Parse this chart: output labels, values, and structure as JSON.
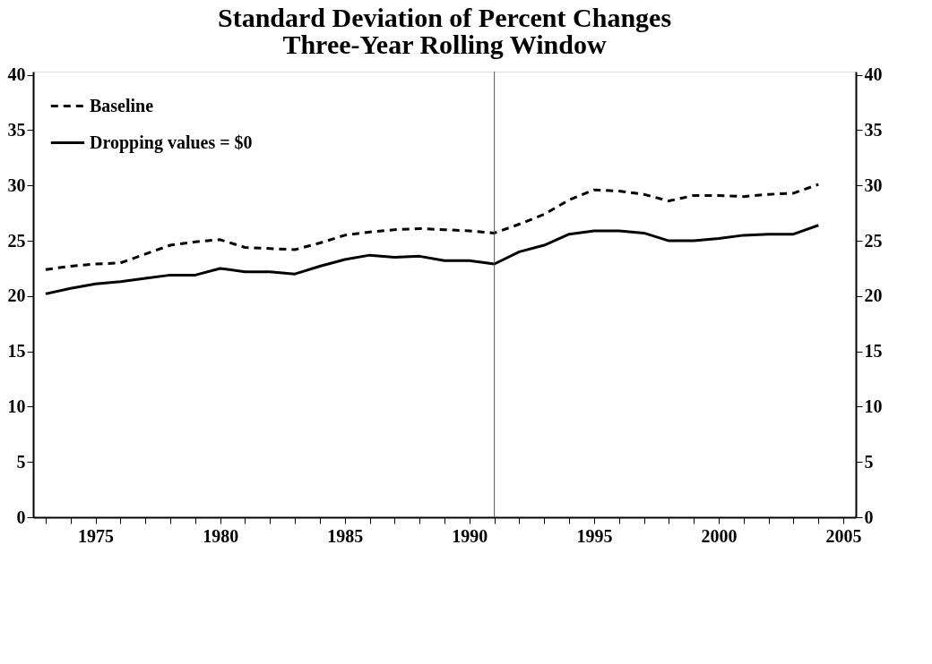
{
  "chart_data": {
    "type": "line",
    "title": "Standard Deviation of Percent Changes",
    "subtitle": "Three-Year Rolling Window",
    "x": [
      1973,
      1974,
      1975,
      1976,
      1977,
      1978,
      1979,
      1980,
      1981,
      1982,
      1983,
      1984,
      1985,
      1986,
      1987,
      1988,
      1989,
      1990,
      1991,
      1992,
      1993,
      1994,
      1995,
      1996,
      1997,
      1998,
      1999,
      2000,
      2001,
      2002,
      2003,
      2004
    ],
    "series": [
      {
        "name": "Baseline",
        "color": "#000000",
        "line_style": "dashed",
        "values": [
          22.4,
          22.7,
          22.9,
          23.0,
          23.8,
          24.6,
          24.9,
          25.1,
          24.4,
          24.3,
          24.2,
          24.8,
          25.5,
          25.8,
          26.0,
          26.1,
          26.0,
          25.9,
          25.7,
          26.5,
          27.4,
          28.7,
          29.6,
          29.5,
          29.2,
          28.6,
          29.1,
          29.1,
          29.0,
          29.2,
          29.3,
          30.1
        ]
      },
      {
        "name": "Dropping values = $0",
        "color": "#000000",
        "line_style": "solid",
        "values": [
          20.2,
          20.7,
          21.1,
          21.3,
          21.6,
          21.9,
          21.9,
          22.5,
          22.2,
          22.2,
          22.0,
          22.7,
          23.3,
          23.7,
          23.5,
          23.6,
          23.2,
          23.2,
          22.9,
          24.0,
          24.6,
          25.6,
          25.9,
          25.9,
          25.7,
          25.0,
          25.0,
          25.2,
          25.5,
          25.6,
          25.6,
          26.4
        ]
      }
    ],
    "xlim": [
      1972.5,
      2005.5
    ],
    "xticks": [
      {
        "value": 1973,
        "label": null
      },
      {
        "value": 1974,
        "label": null
      },
      1975,
      {
        "value": 1976,
        "label": null
      },
      {
        "value": 1977,
        "label": null
      },
      {
        "value": 1978,
        "label": null
      },
      {
        "value": 1979,
        "label": null
      },
      1980,
      {
        "value": 1981,
        "label": null
      },
      {
        "value": 1982,
        "label": null
      },
      {
        "value": 1983,
        "label": null
      },
      {
        "value": 1984,
        "label": null
      },
      1985,
      {
        "value": 1986,
        "label": null
      },
      {
        "value": 1987,
        "label": null
      },
      {
        "value": 1988,
        "label": null
      },
      {
        "value": 1989,
        "label": null
      },
      1990,
      {
        "value": 1991,
        "label": null
      },
      {
        "value": 1992,
        "label": null
      },
      {
        "value": 1993,
        "label": null
      },
      {
        "value": 1994,
        "label": null
      },
      1995,
      {
        "value": 1996,
        "label": null
      },
      {
        "value": 1997,
        "label": null
      },
      {
        "value": 1998,
        "label": null
      },
      {
        "value": 1999,
        "label": null
      },
      2000,
      {
        "value": 2001,
        "label": null
      },
      {
        "value": 2002,
        "label": null
      },
      {
        "value": 2003,
        "label": null
      },
      {
        "value": 2004,
        "label": null
      },
      2005
    ],
    "ylim": [
      0,
      40.3
    ],
    "yticks": [
      0,
      5,
      10,
      15,
      20,
      25,
      30,
      35,
      40
    ],
    "y2lim": [
      0,
      40.3
    ],
    "y2ticks": [
      0,
      5,
      10,
      15,
      20,
      25,
      30,
      35,
      40
    ],
    "ref_lines": [
      {
        "axis": "x",
        "value": 1991,
        "color": "#555555",
        "line_style": "solid"
      }
    ],
    "grid": false,
    "legend": "top left"
  }
}
